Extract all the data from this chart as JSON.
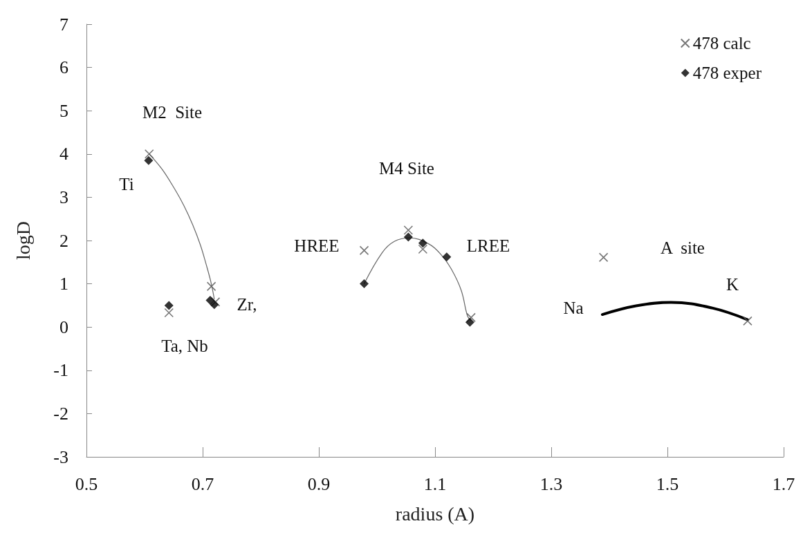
{
  "chart_data": {
    "type": "scatter",
    "xlabel": "radius (A)",
    "ylabel": "logD",
    "xlim": [
      0.5,
      1.7
    ],
    "xticks": [
      0.5,
      0.7,
      0.9,
      1.1,
      1.3,
      1.5,
      1.7
    ],
    "ylim": [
      -3,
      7
    ],
    "yticks": [
      -3,
      -2,
      -1,
      0,
      1,
      2,
      3,
      4,
      5,
      6,
      7
    ],
    "grid": false,
    "legend": "top right",
    "series": [
      {
        "name": "478 calc",
        "color": "#555555",
        "marker": "cross",
        "x": [
          0.608,
          0.642,
          0.715,
          0.722,
          0.978,
          1.054,
          1.079,
          1.162,
          1.39,
          1.638
        ],
        "values": [
          4.0,
          0.33,
          0.94,
          0.58,
          1.77,
          2.24,
          1.8,
          0.22,
          1.61,
          0.14
        ]
      },
      {
        "name": "478 exper",
        "color": "#000000",
        "marker": "diamond",
        "x": [
          0.607,
          0.642,
          0.713,
          0.72,
          0.978,
          1.054,
          1.079,
          1.12,
          1.16
        ],
        "values": [
          3.85,
          0.5,
          0.62,
          0.52,
          1.0,
          2.08,
          1.94,
          1.62,
          0.11
        ]
      },
      {
        "type": "line",
        "color": "#666666",
        "marker": "none",
        "x": [
          0.608,
          0.63,
          0.651,
          0.668,
          0.683,
          0.696,
          0.706,
          0.714,
          0.72
        ],
        "values": [
          4.0,
          3.65,
          3.21,
          2.8,
          2.36,
          1.9,
          1.45,
          1.05,
          0.65
        ]
      },
      {
        "type": "line",
        "color": "#666666",
        "marker": "none",
        "x": [
          0.978,
          1.009,
          1.03,
          1.056,
          1.088,
          1.11,
          1.128,
          1.145,
          1.156,
          1.162
        ],
        "values": [
          1.0,
          1.72,
          1.98,
          2.06,
          1.93,
          1.68,
          1.34,
          0.85,
          0.25,
          0.15
        ]
      },
      {
        "type": "line",
        "color": "#000000",
        "marker": "none",
        "x": [
          1.388,
          1.446,
          1.506,
          1.577,
          1.638
        ],
        "values": [
          0.29,
          0.49,
          0.57,
          0.44,
          0.17
        ]
      }
    ],
    "annotations": [
      "M2  Site",
      "Ti",
      "Ta, Nb",
      "Zr,",
      "M4 Site",
      "HREE",
      "LREE",
      "A  site",
      "Na",
      "K"
    ]
  }
}
